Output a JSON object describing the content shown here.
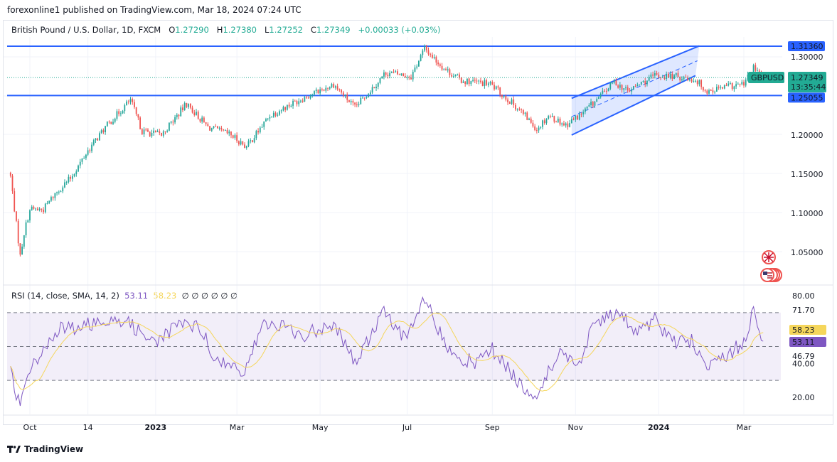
{
  "published": "forexonline1 published on TradingView.com, Mar 18, 2024 07:24 UTC",
  "legend": {
    "title": "British Pound / U.S. Dollar, 1D, FXCM",
    "o_label": "O",
    "o": "1.27290",
    "h_label": "H",
    "h": "1.27380",
    "l_label": "L",
    "l": "1.27252",
    "c_label": "C",
    "c": "1.27349",
    "change": "+0.00033 (+0.03%)"
  },
  "rsi_legend": {
    "title": "RSI (14, close, SMA, 14, 2)",
    "rsi": "53.11",
    "sma": "58.23",
    "empty": "∅ ∅ ∅ ∅ ∅ ∅"
  },
  "brand": "TradingView",
  "colors": {
    "up": "#26a69a",
    "down": "#ef5350",
    "level": "#2962ff",
    "rsi": "#7e57c2",
    "sma": "#f5d65b",
    "symbol": "#22ab94"
  },
  "chart_data": [
    {
      "type": "candlestick",
      "symbol": "GBPUSD",
      "interval": "1D",
      "ylim": [
        1.02,
        1.325
      ],
      "y_ticks": [
        "1.30000",
        "1.20000",
        "1.15000",
        "1.10000",
        "1.05000"
      ],
      "x_ticks": [
        [
          "2022-10-03",
          "Oct"
        ],
        [
          "2022-11-14",
          "14"
        ],
        [
          "2023-01-02",
          "2023"
        ],
        [
          "2023-03-01",
          "Mar"
        ],
        [
          "2023-05-01",
          "May"
        ],
        [
          "2023-07-03",
          "Jul"
        ],
        [
          "2023-09-01",
          "Sep"
        ],
        [
          "2023-11-01",
          "Nov"
        ],
        [
          "2024-01-01",
          "2024"
        ],
        [
          "2024-03-01",
          "Mar"
        ]
      ],
      "horizontal_levels": [
        {
          "value": 1.3136,
          "label": "1.31360"
        },
        {
          "value": 1.25055,
          "label": "1.25055"
        }
      ],
      "current_price": {
        "symbol": "GBPUSD",
        "value": "1.27349",
        "countdown": "13:35:44"
      },
      "channel": {
        "lower": [
          [
            "2023-10-30",
            1.2
          ],
          [
            "2024-01-26",
            1.276
          ]
        ],
        "upper": [
          [
            "2023-10-30",
            1.247
          ],
          [
            "2024-01-30",
            1.314
          ]
        ]
      },
      "close_keypoints": [
        [
          "2022-09-19",
          1.147
        ],
        [
          "2022-09-26",
          1.045
        ],
        [
          "2022-09-28",
          1.075
        ],
        [
          "2022-10-03",
          1.105
        ],
        [
          "2022-10-12",
          1.105
        ],
        [
          "2022-10-20",
          1.125
        ],
        [
          "2022-11-01",
          1.145
        ],
        [
          "2022-11-14",
          1.18
        ],
        [
          "2022-11-25",
          1.21
        ],
        [
          "2022-12-14",
          1.245
        ],
        [
          "2022-12-22",
          1.205
        ],
        [
          "2023-01-05",
          1.2
        ],
        [
          "2023-01-24",
          1.24
        ],
        [
          "2023-02-08",
          1.21
        ],
        [
          "2023-02-24",
          1.2
        ],
        [
          "2023-03-08",
          1.185
        ],
        [
          "2023-03-24",
          1.225
        ],
        [
          "2023-04-14",
          1.245
        ],
        [
          "2023-05-10",
          1.265
        ],
        [
          "2023-05-25",
          1.235
        ],
        [
          "2023-06-16",
          1.28
        ],
        [
          "2023-07-05",
          1.275
        ],
        [
          "2023-07-14",
          1.311
        ],
        [
          "2023-07-28",
          1.285
        ],
        [
          "2023-08-10",
          1.27
        ],
        [
          "2023-08-31",
          1.265
        ],
        [
          "2023-09-20",
          1.235
        ],
        [
          "2023-10-04",
          1.208
        ],
        [
          "2023-10-12",
          1.225
        ],
        [
          "2023-10-25",
          1.213
        ],
        [
          "2023-11-03",
          1.225
        ],
        [
          "2023-11-16",
          1.245
        ],
        [
          "2023-11-29",
          1.268
        ],
        [
          "2023-12-08",
          1.256
        ],
        [
          "2023-12-28",
          1.276
        ],
        [
          "2024-01-12",
          1.275
        ],
        [
          "2024-01-26",
          1.271
        ],
        [
          "2024-02-05",
          1.256
        ],
        [
          "2024-02-20",
          1.262
        ],
        [
          "2024-03-01",
          1.265
        ],
        [
          "2024-03-08",
          1.285
        ],
        [
          "2024-03-15",
          1.2735
        ]
      ]
    },
    {
      "type": "line",
      "indicator": "RSI",
      "ylim": [
        10,
        85
      ],
      "y_ticks": [
        "80.00",
        "71.70",
        "46.79",
        "40.00",
        "20.00"
      ],
      "bands": [
        70,
        50,
        30
      ],
      "last": {
        "rsi": "53.11",
        "sma": "58.23"
      },
      "rsi_keypoints": [
        [
          "2022-09-19",
          34
        ],
        [
          "2022-09-26",
          15
        ],
        [
          "2022-10-03",
          36
        ],
        [
          "2022-10-12",
          49
        ],
        [
          "2022-10-25",
          60
        ],
        [
          "2022-11-10",
          62
        ],
        [
          "2022-11-25",
          66
        ],
        [
          "2022-12-01",
          68
        ],
        [
          "2022-12-15",
          62
        ],
        [
          "2023-01-03",
          53
        ],
        [
          "2023-01-20",
          64
        ],
        [
          "2023-02-03",
          60
        ],
        [
          "2023-02-15",
          40
        ],
        [
          "2023-03-08",
          36
        ],
        [
          "2023-03-20",
          64
        ],
        [
          "2023-04-03",
          62
        ],
        [
          "2023-04-17",
          56
        ],
        [
          "2023-05-10",
          64
        ],
        [
          "2023-05-25",
          40
        ],
        [
          "2023-06-15",
          70
        ],
        [
          "2023-07-03",
          54
        ],
        [
          "2023-07-14",
          78
        ],
        [
          "2023-08-01",
          47
        ],
        [
          "2023-08-21",
          40
        ],
        [
          "2023-09-01",
          48
        ],
        [
          "2023-09-25",
          26
        ],
        [
          "2023-10-04",
          20
        ],
        [
          "2023-10-20",
          49
        ],
        [
          "2023-11-01",
          36
        ],
        [
          "2023-11-14",
          62
        ],
        [
          "2023-12-01",
          70
        ],
        [
          "2023-12-15",
          58
        ],
        [
          "2023-12-28",
          66
        ],
        [
          "2024-01-10",
          53
        ],
        [
          "2024-01-25",
          53
        ],
        [
          "2024-02-05",
          36
        ],
        [
          "2024-02-20",
          45
        ],
        [
          "2024-03-01",
          53
        ],
        [
          "2024-03-08",
          71
        ],
        [
          "2024-03-15",
          53.11
        ]
      ]
    }
  ]
}
